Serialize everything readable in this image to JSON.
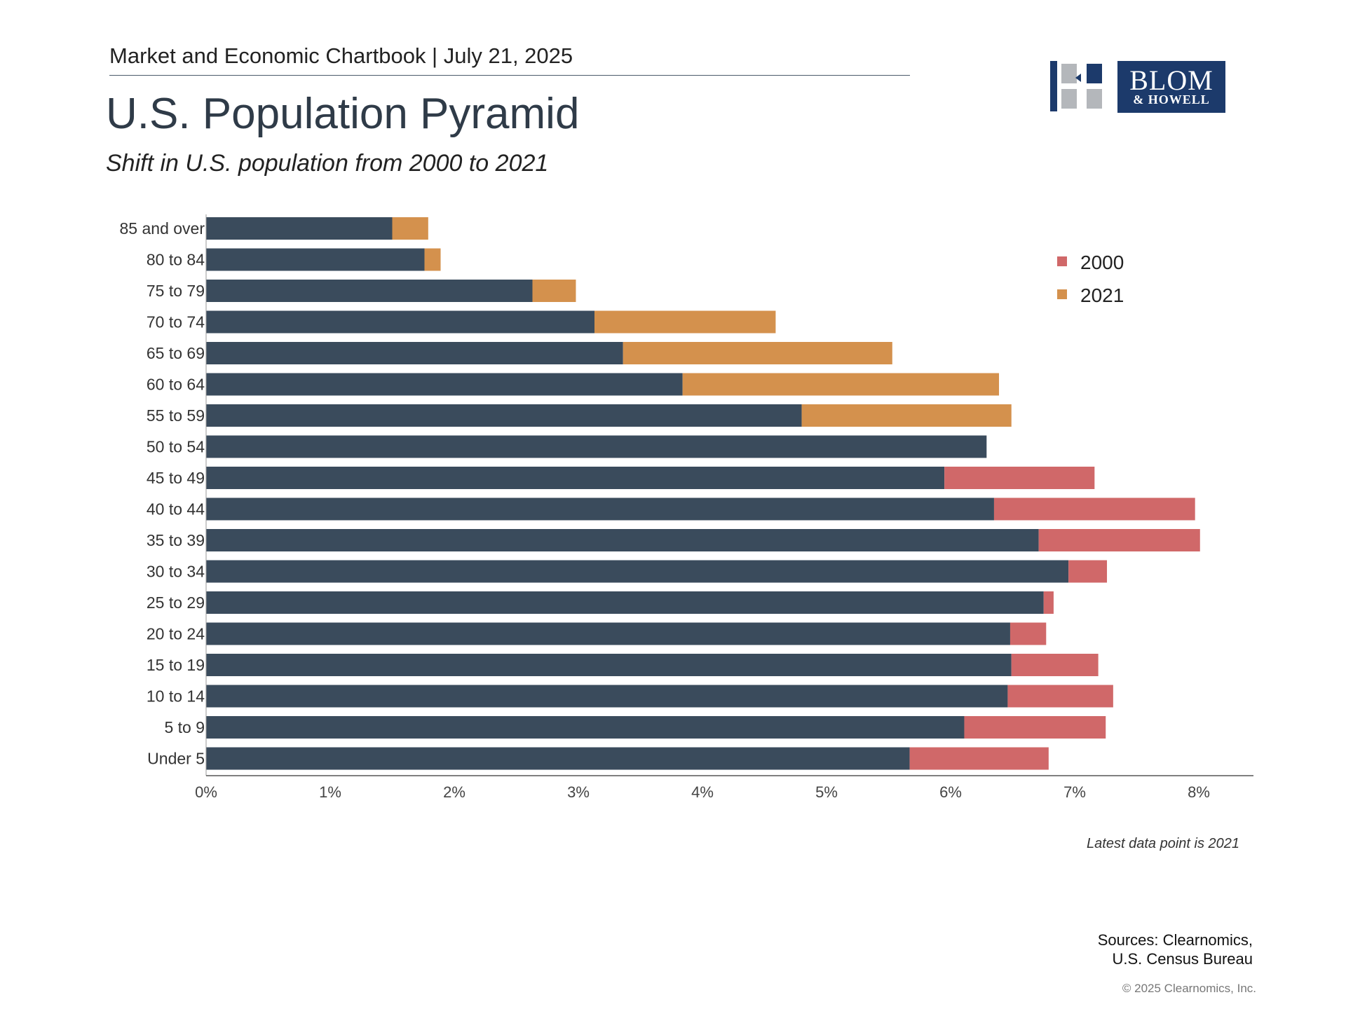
{
  "header": {
    "publication": "Market and Economic Chartbook | July 21, 2025",
    "title": "U.S. Population Pyramid",
    "subtitle": "Shift in U.S. population from 2000 to 2021"
  },
  "logo": {
    "word1": "BLOM",
    "word2": "& HOWELL",
    "colors": {
      "navy": "#1c3a6b",
      "gray": "#b4b7bb"
    }
  },
  "chart_data": {
    "type": "bar",
    "orientation": "horizontal",
    "categories": [
      "85 and over",
      "80 to 84",
      "75 to 79",
      "70 to 74",
      "65 to 69",
      "60 to 64",
      "55 to 59",
      "50 to 54",
      "45 to 49",
      "40 to 44",
      "35 to 39",
      "30 to 34",
      "25 to 29",
      "20 to 24",
      "15 to 19",
      "10 to 14",
      "5 to 9",
      "Under 5"
    ],
    "base_values": [
      1.5,
      1.76,
      2.63,
      3.13,
      3.36,
      3.84,
      4.8,
      6.29,
      5.95,
      6.35,
      6.71,
      6.95,
      6.75,
      6.48,
      6.49,
      6.46,
      6.11,
      5.67
    ],
    "series": [
      {
        "name": "2000",
        "values": [
          1.5,
          1.76,
          2.63,
          3.13,
          3.36,
          3.84,
          4.8,
          6.29,
          7.16,
          7.97,
          8.01,
          7.26,
          6.83,
          6.77,
          7.19,
          7.31,
          7.25,
          6.79
        ],
        "color": "#d06869"
      },
      {
        "name": "2021",
        "values": [
          1.79,
          1.89,
          2.98,
          4.59,
          5.53,
          6.39,
          6.49,
          6.29,
          5.95,
          6.35,
          6.71,
          6.95,
          6.75,
          6.48,
          6.49,
          6.46,
          6.11,
          5.67
        ],
        "color": "#d4914d"
      }
    ],
    "base_color": "#3a4b5c",
    "x_ticks": [
      "0%",
      "1%",
      "2%",
      "3%",
      "4%",
      "5%",
      "6%",
      "7%",
      "8%"
    ],
    "xlim": [
      0,
      8.45
    ],
    "legend_position": "top-right",
    "grid": false
  },
  "footer": {
    "note": "Latest data point is 2021",
    "sources_line1": "Sources: Clearnomics,",
    "sources_line2": "U.S. Census Bureau",
    "copyright": "© 2025 Clearnomics, Inc."
  }
}
